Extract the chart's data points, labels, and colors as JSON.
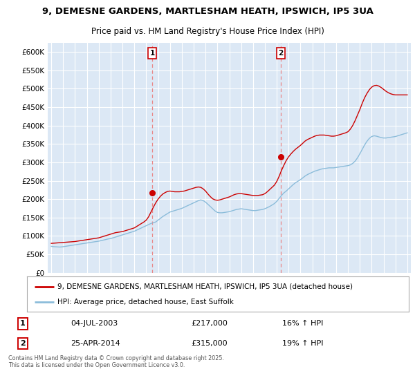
{
  "title": "9, DEMESNE GARDENS, MARTLESHAM HEATH, IPSWICH, IP5 3UA",
  "subtitle": "Price paid vs. HM Land Registry's House Price Index (HPI)",
  "ylim": [
    0,
    625000
  ],
  "yticks": [
    0,
    50000,
    100000,
    150000,
    200000,
    250000,
    300000,
    350000,
    400000,
    450000,
    500000,
    550000,
    600000
  ],
  "ytick_labels": [
    "£0",
    "£50K",
    "£100K",
    "£150K",
    "£200K",
    "£250K",
    "£300K",
    "£350K",
    "£400K",
    "£450K",
    "£500K",
    "£550K",
    "£600K"
  ],
  "line1_color": "#cc0000",
  "line2_color": "#8bbcda",
  "marker_color": "#cc0000",
  "vline_color": "#e88888",
  "legend_label1": "9, DEMESNE GARDENS, MARTLESHAM HEATH, IPSWICH, IP5 3UA (detached house)",
  "legend_label2": "HPI: Average price, detached house, East Suffolk",
  "event1_x": 2003.5,
  "event1_y": 217000,
  "event1_label": "1",
  "event1_date": "04-JUL-2003",
  "event1_price": "£217,000",
  "event1_hpi": "16% ↑ HPI",
  "event2_x": 2014.33,
  "event2_y": 315000,
  "event2_label": "2",
  "event2_date": "25-APR-2014",
  "event2_price": "£315,000",
  "event2_hpi": "19% ↑ HPI",
  "copyright": "Contains HM Land Registry data © Crown copyright and database right 2025.\nThis data is licensed under the Open Government Licence v3.0.",
  "bg_color": "#dce8f5",
  "xlim_left": 1994.7,
  "xlim_right": 2025.3,
  "hpi_x": [
    1995.0,
    1995.1,
    1995.2,
    1995.3,
    1995.4,
    1995.5,
    1995.6,
    1995.7,
    1995.8,
    1995.9,
    1996.0,
    1996.1,
    1996.2,
    1996.3,
    1996.4,
    1996.5,
    1996.6,
    1996.7,
    1996.8,
    1996.9,
    1997.0,
    1997.2,
    1997.4,
    1997.6,
    1997.8,
    1998.0,
    1998.2,
    1998.4,
    1998.6,
    1998.8,
    1999.0,
    1999.2,
    1999.4,
    1999.6,
    1999.8,
    2000.0,
    2000.2,
    2000.4,
    2000.6,
    2000.8,
    2001.0,
    2001.2,
    2001.4,
    2001.6,
    2001.8,
    2002.0,
    2002.2,
    2002.4,
    2002.6,
    2002.8,
    2003.0,
    2003.2,
    2003.4,
    2003.6,
    2003.8,
    2004.0,
    2004.2,
    2004.4,
    2004.6,
    2004.8,
    2005.0,
    2005.2,
    2005.4,
    2005.6,
    2005.8,
    2006.0,
    2006.2,
    2006.4,
    2006.6,
    2006.8,
    2007.0,
    2007.2,
    2007.4,
    2007.6,
    2007.8,
    2008.0,
    2008.2,
    2008.4,
    2008.6,
    2008.8,
    2009.0,
    2009.2,
    2009.4,
    2009.6,
    2009.8,
    2010.0,
    2010.2,
    2010.4,
    2010.6,
    2010.8,
    2011.0,
    2011.2,
    2011.4,
    2011.6,
    2011.8,
    2012.0,
    2012.2,
    2012.4,
    2012.6,
    2012.8,
    2013.0,
    2013.2,
    2013.4,
    2013.6,
    2013.8,
    2014.0,
    2014.2,
    2014.4,
    2014.6,
    2014.8,
    2015.0,
    2015.2,
    2015.4,
    2015.6,
    2015.8,
    2016.0,
    2016.2,
    2016.4,
    2016.6,
    2016.8,
    2017.0,
    2017.2,
    2017.4,
    2017.6,
    2017.8,
    2018.0,
    2018.2,
    2018.4,
    2018.6,
    2018.8,
    2019.0,
    2019.2,
    2019.4,
    2019.6,
    2019.8,
    2020.0,
    2020.2,
    2020.4,
    2020.6,
    2020.8,
    2021.0,
    2021.2,
    2021.4,
    2021.6,
    2021.8,
    2022.0,
    2022.2,
    2022.4,
    2022.6,
    2022.8,
    2023.0,
    2023.2,
    2023.4,
    2023.6,
    2023.8,
    2024.0,
    2024.2,
    2024.4,
    2024.6,
    2024.8,
    2025.0
  ],
  "hpi_y": [
    72000,
    71500,
    71000,
    70800,
    70500,
    70300,
    70200,
    70000,
    70200,
    70500,
    71000,
    71500,
    72000,
    72500,
    73000,
    73500,
    74000,
    74500,
    75000,
    75500,
    76000,
    77000,
    78000,
    79000,
    80000,
    81000,
    82000,
    83000,
    84000,
    85000,
    86000,
    87500,
    89000,
    90500,
    92000,
    93000,
    95000,
    97000,
    99000,
    101000,
    103000,
    105000,
    107000,
    109000,
    111000,
    113000,
    116000,
    119000,
    122000,
    125000,
    128000,
    131000,
    134000,
    136000,
    138000,
    143000,
    148000,
    153000,
    157000,
    161000,
    165000,
    167000,
    169000,
    171000,
    173000,
    175000,
    178000,
    181000,
    184000,
    187000,
    190000,
    193000,
    196000,
    198000,
    196000,
    192000,
    186000,
    180000,
    174000,
    168000,
    164000,
    163000,
    163000,
    164000,
    165000,
    166000,
    168000,
    170000,
    172000,
    173000,
    174000,
    173000,
    172000,
    171000,
    170000,
    169000,
    169000,
    170000,
    171000,
    172000,
    174000,
    177000,
    180000,
    184000,
    188000,
    194000,
    202000,
    210000,
    217000,
    222000,
    228000,
    234000,
    240000,
    245000,
    249000,
    253000,
    258000,
    263000,
    267000,
    270000,
    273000,
    276000,
    278000,
    280000,
    282000,
    283000,
    284000,
    285000,
    285000,
    285000,
    286000,
    287000,
    288000,
    289000,
    290000,
    291000,
    293000,
    297000,
    303000,
    312000,
    323000,
    335000,
    347000,
    357000,
    365000,
    370000,
    372000,
    371000,
    369000,
    367000,
    366000,
    366000,
    367000,
    368000,
    369000,
    370000,
    372000,
    374000,
    376000,
    378000,
    380000
  ],
  "price_x": [
    1995.0,
    1995.2,
    1995.4,
    1995.6,
    1995.8,
    1996.0,
    1996.2,
    1996.4,
    1996.6,
    1996.8,
    1997.0,
    1997.2,
    1997.4,
    1997.6,
    1997.8,
    1998.0,
    1998.2,
    1998.4,
    1998.6,
    1998.8,
    1999.0,
    1999.2,
    1999.4,
    1999.6,
    1999.8,
    2000.0,
    2000.2,
    2000.4,
    2000.6,
    2000.8,
    2001.0,
    2001.2,
    2001.4,
    2001.6,
    2001.8,
    2002.0,
    2002.2,
    2002.4,
    2002.6,
    2002.8,
    2003.0,
    2003.2,
    2003.4,
    2003.6,
    2003.8,
    2004.0,
    2004.2,
    2004.4,
    2004.6,
    2004.8,
    2005.0,
    2005.2,
    2005.4,
    2005.6,
    2005.8,
    2006.0,
    2006.2,
    2006.4,
    2006.6,
    2006.8,
    2007.0,
    2007.2,
    2007.4,
    2007.6,
    2007.8,
    2008.0,
    2008.2,
    2008.4,
    2008.6,
    2008.8,
    2009.0,
    2009.2,
    2009.4,
    2009.6,
    2009.8,
    2010.0,
    2010.2,
    2010.4,
    2010.6,
    2010.8,
    2011.0,
    2011.2,
    2011.4,
    2011.6,
    2011.8,
    2012.0,
    2012.2,
    2012.4,
    2012.6,
    2012.8,
    2013.0,
    2013.2,
    2013.4,
    2013.6,
    2013.8,
    2014.0,
    2014.2,
    2014.4,
    2014.6,
    2014.8,
    2015.0,
    2015.2,
    2015.4,
    2015.6,
    2015.8,
    2016.0,
    2016.2,
    2016.4,
    2016.6,
    2016.8,
    2017.0,
    2017.2,
    2017.4,
    2017.6,
    2017.8,
    2018.0,
    2018.2,
    2018.4,
    2018.6,
    2018.8,
    2019.0,
    2019.2,
    2019.4,
    2019.6,
    2019.8,
    2020.0,
    2020.2,
    2020.4,
    2020.6,
    2020.8,
    2021.0,
    2021.2,
    2021.4,
    2021.6,
    2021.8,
    2022.0,
    2022.2,
    2022.4,
    2022.6,
    2022.8,
    2023.0,
    2023.2,
    2023.4,
    2023.6,
    2023.8,
    2024.0,
    2024.2,
    2024.4,
    2024.6,
    2024.8,
    2025.0
  ],
  "price_y": [
    80000,
    80500,
    81000,
    81500,
    82000,
    82500,
    83000,
    83500,
    84000,
    84500,
    85000,
    86000,
    87000,
    88000,
    89000,
    90000,
    91000,
    92000,
    93000,
    94000,
    95000,
    97000,
    99000,
    101000,
    103000,
    105000,
    107000,
    109000,
    110000,
    111000,
    112000,
    114000,
    116000,
    118000,
    120000,
    122000,
    126000,
    130000,
    134000,
    138000,
    143000,
    152000,
    165000,
    178000,
    190000,
    200000,
    208000,
    214000,
    218000,
    221000,
    222000,
    221000,
    220000,
    220000,
    220000,
    221000,
    222000,
    224000,
    226000,
    228000,
    230000,
    232000,
    233000,
    232000,
    228000,
    222000,
    214000,
    207000,
    201000,
    198000,
    197000,
    198000,
    200000,
    202000,
    204000,
    206000,
    209000,
    212000,
    214000,
    215000,
    215000,
    214000,
    213000,
    212000,
    211000,
    210000,
    210000,
    210000,
    211000,
    212000,
    215000,
    220000,
    226000,
    232000,
    238000,
    248000,
    262000,
    278000,
    292000,
    305000,
    315000,
    323000,
    330000,
    336000,
    341000,
    346000,
    352000,
    358000,
    362000,
    365000,
    368000,
    371000,
    373000,
    374000,
    374000,
    374000,
    373000,
    372000,
    371000,
    371000,
    372000,
    374000,
    376000,
    378000,
    380000,
    383000,
    390000,
    400000,
    413000,
    428000,
    443000,
    460000,
    475000,
    487000,
    497000,
    504000,
    508000,
    509000,
    507000,
    503000,
    498000,
    493000,
    489000,
    486000,
    484000,
    483000,
    483000,
    483000,
    483000,
    483000,
    483000
  ]
}
